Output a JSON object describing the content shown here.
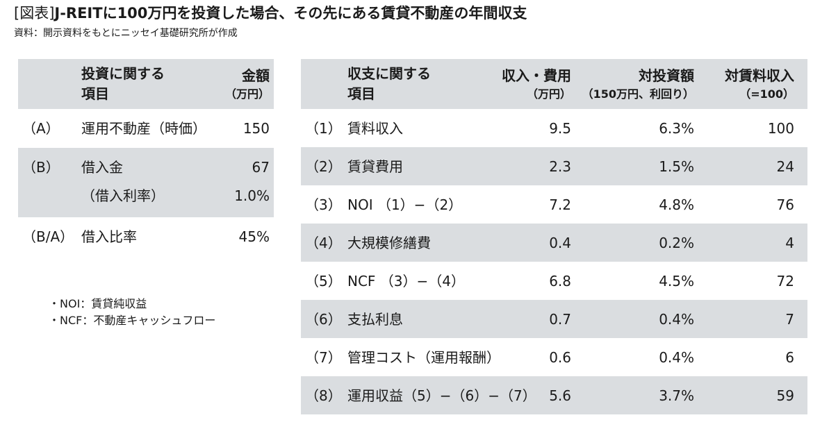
{
  "header": {
    "bracket": "[図表]",
    "title": "J-REITに100万円を投資した場合、その先にある賃貸不動産の年間収支",
    "source": "資料：開示資料をもとにニッセイ基礎研究所が作成"
  },
  "left_table": {
    "headers": {
      "item_line1": "投資に関する",
      "item_line2": "項目",
      "amount_line1": "金額",
      "amount_line2": "（万円）"
    },
    "rows": [
      {
        "label": "（A）",
        "item": "運用不動産（時価）",
        "value": "150"
      },
      {
        "label": "（B）",
        "item": "借入金",
        "value": "67",
        "item2": "（借入利率）",
        "value2": "1.0%"
      },
      {
        "label": "（B/A）",
        "item": "借入比率",
        "value": "45%"
      }
    ]
  },
  "right_table": {
    "headers": {
      "item_line1": "収支に関する",
      "item_line2": "項目",
      "income_line1": "収入・費用",
      "income_line2": "（万円）",
      "yield_line1": "対投資額",
      "yield_line2": "（150万円、利回り）",
      "ratio_line1": "対賃料収入",
      "ratio_line2": "（=100）"
    },
    "rows": [
      {
        "label": "（1）",
        "item": "賃料収入",
        "value": "9.5",
        "yield": "6.3%",
        "ratio": "100"
      },
      {
        "label": "（2）",
        "item": "賃貸費用",
        "value": "2.3",
        "yield": "1.5%",
        "ratio": "24"
      },
      {
        "label": "（3）",
        "item": "NOI （1）−（2）",
        "value": "7.2",
        "yield": "4.8%",
        "ratio": "76"
      },
      {
        "label": "（4）",
        "item": "大規模修繕費",
        "value": "0.4",
        "yield": "0.2%",
        "ratio": "4"
      },
      {
        "label": "（5）",
        "item": "NCF （3）−（4）",
        "value": "6.8",
        "yield": "4.5%",
        "ratio": "72"
      },
      {
        "label": "（6）",
        "item": "支払利息",
        "value": "0.7",
        "yield": "0.4%",
        "ratio": "7"
      },
      {
        "label": "（7）",
        "item": "管理コスト（運用報酬）",
        "value": "0.6",
        "yield": "0.4%",
        "ratio": "6"
      },
      {
        "label": "（8）",
        "item": "運用収益（5）−（6）−（7）",
        "value": "5.6",
        "yield": "3.7%",
        "ratio": "59"
      }
    ]
  },
  "notes": [
    "・NOI：賃貸純収益",
    "・NCF：不動産キャッシュフロー"
  ]
}
